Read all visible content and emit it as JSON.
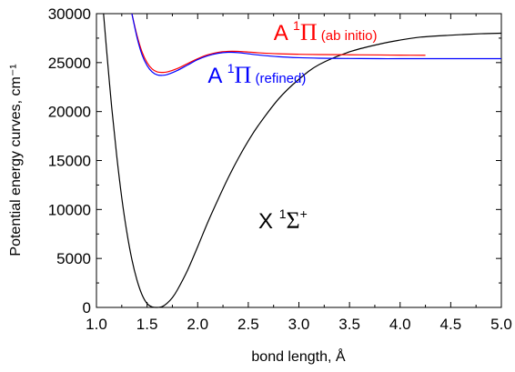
{
  "chart_data": {
    "type": "line",
    "title": "",
    "xlabel": "bond length, Å",
    "ylabel": "Potential energy curves, cm⁻¹",
    "xlim": [
      1.0,
      5.0
    ],
    "ylim": [
      0,
      30000
    ],
    "xticks": [
      1.0,
      1.5,
      2.0,
      2.5,
      3.0,
      3.5,
      4.0,
      4.5,
      5.0
    ],
    "xtick_labels": [
      "1.0",
      "1.5",
      "2.0",
      "2.5",
      "3.0",
      "3.5",
      "4.0",
      "4.5",
      "5.0"
    ],
    "yticks": [
      0,
      5000,
      10000,
      15000,
      20000,
      25000,
      30000
    ],
    "ytick_labels": [
      "0",
      "5000",
      "10000",
      "15000",
      "20000",
      "25000",
      "30000"
    ],
    "grid": false,
    "series": [
      {
        "name": "X ¹Σ⁺",
        "color": "#000000",
        "x": [
          1.07,
          1.1,
          1.15,
          1.2,
          1.25,
          1.3,
          1.35,
          1.4,
          1.45,
          1.5,
          1.55,
          1.6,
          1.65,
          1.7,
          1.75,
          1.8,
          1.9,
          2.0,
          2.1,
          2.2,
          2.3,
          2.4,
          2.5,
          2.6,
          2.8,
          3.0,
          3.2,
          3.5,
          3.8,
          4.0,
          4.2,
          4.5,
          4.8,
          5.0
        ],
        "y": [
          30000,
          26300,
          20500,
          15500,
          11200,
          7700,
          4900,
          2800,
          1300,
          400,
          50,
          0,
          90,
          450,
          1000,
          1800,
          3800,
          6200,
          8700,
          11000,
          13200,
          15200,
          17000,
          18600,
          21300,
          23300,
          24800,
          26100,
          26900,
          27300,
          27600,
          27800,
          27950,
          28000
        ]
      },
      {
        "name": "A ¹Π (ab initio)",
        "color": "#ff0000",
        "x": [
          1.35,
          1.4,
          1.45,
          1.5,
          1.55,
          1.6,
          1.65,
          1.7,
          1.8,
          1.9,
          2.0,
          2.1,
          2.2,
          2.3,
          2.4,
          2.5,
          2.6,
          2.8,
          3.0,
          3.2,
          3.5,
          3.8,
          4.0,
          4.25
        ],
        "y": [
          30000,
          27800,
          26100,
          25000,
          24350,
          24050,
          24000,
          24050,
          24400,
          24900,
          25400,
          25800,
          26050,
          26150,
          26150,
          26080,
          26000,
          25900,
          25850,
          25820,
          25800,
          25780,
          25760,
          25750
        ]
      },
      {
        "name": "A ¹Π (refined)",
        "color": "#0000ff",
        "x": [
          1.35,
          1.4,
          1.45,
          1.5,
          1.55,
          1.6,
          1.65,
          1.7,
          1.8,
          1.9,
          2.0,
          2.1,
          2.2,
          2.3,
          2.4,
          2.5,
          2.6,
          2.8,
          3.0,
          3.2,
          3.5,
          3.8,
          4.0,
          4.5,
          5.0
        ],
        "y": [
          30000,
          27600,
          25800,
          24700,
          24050,
          23750,
          23700,
          23780,
          24200,
          24750,
          25300,
          25700,
          25950,
          26050,
          26020,
          25900,
          25780,
          25600,
          25500,
          25450,
          25420,
          25400,
          25400,
          25400,
          25400
        ]
      }
    ],
    "annotations": [
      {
        "main": "A ",
        "sup": "1",
        "sym": "Π",
        "sub": " (ab initio)",
        "color": "#ff0000",
        "x": 2.75,
        "y": 27300
      },
      {
        "main": "A ",
        "sup": "1",
        "sym": "Π",
        "sub": " (refined)",
        "color": "#0000ff",
        "x": 2.1,
        "y": 22950
      },
      {
        "main": "X ",
        "sup": "1",
        "sym": "Σ",
        "supplus": "+",
        "sub": "",
        "color": "#000000",
        "x": 2.6,
        "y": 8100
      }
    ]
  }
}
